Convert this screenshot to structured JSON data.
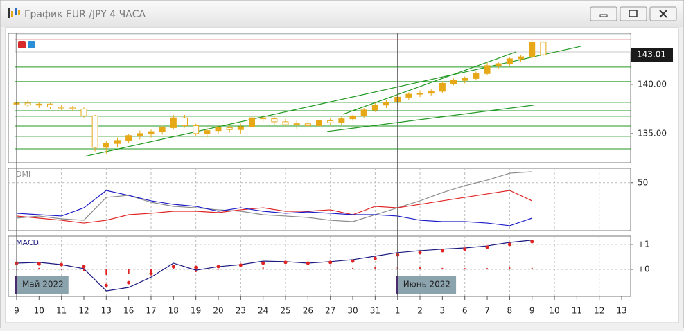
{
  "window": {
    "title": "График EUR /JPY  4 ЧАСА"
  },
  "chart_data": [
    {
      "type": "candlestick",
      "x": [
        0,
        0.5,
        1,
        1.5,
        2,
        2.5,
        3,
        3.5,
        4,
        4.5,
        5,
        5.5,
        6,
        6.5,
        7,
        7.5,
        8,
        8.5,
        9,
        9.5,
        10,
        10.5,
        11,
        11.5,
        12,
        12.5,
        13,
        13.5,
        14,
        14.5,
        15,
        15.5,
        16,
        16.5,
        17,
        17.5,
        18,
        18.5,
        19,
        19.5,
        20,
        20.5,
        21,
        21.5,
        22,
        22.5,
        23,
        23.5
      ],
      "open": [
        138.0,
        138.1,
        137.9,
        138.0,
        137.7,
        137.6,
        137.5,
        136.8,
        133.6,
        134.0,
        134.3,
        134.8,
        135.0,
        135.2,
        135.6,
        136.6,
        135.8,
        135.0,
        135.3,
        135.6,
        135.4,
        135.7,
        136.6,
        136.5,
        136.2,
        135.9,
        136.0,
        135.8,
        136.3,
        136.1,
        136.5,
        136.8,
        137.4,
        137.9,
        138.2,
        138.7,
        139.0,
        139.1,
        139.3,
        140.1,
        140.4,
        140.6,
        141.1,
        141.9,
        142.1,
        142.6,
        142.8,
        144.3
      ],
      "high": [
        138.3,
        138.4,
        138.2,
        138.1,
        137.9,
        137.8,
        137.7,
        136.9,
        134.3,
        134.6,
        135.0,
        135.3,
        135.4,
        135.8,
        136.9,
        136.9,
        136.0,
        135.6,
        135.9,
        135.9,
        136.0,
        136.8,
        136.9,
        136.8,
        136.5,
        136.3,
        136.4,
        136.6,
        136.6,
        136.7,
        136.9,
        137.6,
        138.1,
        138.4,
        138.9,
        139.2,
        139.4,
        139.5,
        140.3,
        140.6,
        140.8,
        141.3,
        142.2,
        142.3,
        142.8,
        143.0,
        144.6,
        144.4
      ],
      "low": [
        137.8,
        137.7,
        137.6,
        137.5,
        137.4,
        137.3,
        136.6,
        133.2,
        132.9,
        133.6,
        134.0,
        134.4,
        134.6,
        134.9,
        135.4,
        135.6,
        134.8,
        134.6,
        135.0,
        135.1,
        135.0,
        135.6,
        136.2,
        135.9,
        135.7,
        135.5,
        135.6,
        135.5,
        135.9,
        135.9,
        136.3,
        136.6,
        137.2,
        137.6,
        137.9,
        138.4,
        138.7,
        138.8,
        139.1,
        139.9,
        140.1,
        140.4,
        140.9,
        141.6,
        141.9,
        142.3,
        142.6,
        142.9
      ],
      "close": [
        138.1,
        137.9,
        138.0,
        137.7,
        137.6,
        137.5,
        136.8,
        133.6,
        134.0,
        134.3,
        134.8,
        135.0,
        135.2,
        135.6,
        136.6,
        135.8,
        135.0,
        135.3,
        135.6,
        135.4,
        135.7,
        136.6,
        136.5,
        136.2,
        135.9,
        136.0,
        135.8,
        136.3,
        136.1,
        136.5,
        136.8,
        137.4,
        137.9,
        138.2,
        138.7,
        139.0,
        139.1,
        139.3,
        140.1,
        140.4,
        140.6,
        141.1,
        141.9,
        142.1,
        142.6,
        142.8,
        144.3,
        143.0
      ],
      "color": "#e6a817",
      "xlim": [
        -0.37,
        27.4
      ],
      "ylim": [
        132.04,
        145.2
      ],
      "yticks": [
        {
          "value": 135,
          "label": "135.00"
        },
        {
          "value": 140,
          "label": "140.00"
        }
      ],
      "last_price": {
        "value": 143.01,
        "label": "143.01"
      },
      "levels": [
        {
          "value": 144.58,
          "color": "#d03030"
        },
        {
          "value": 141.76,
          "color": "#229922"
        },
        {
          "value": 140.28,
          "color": "#229922"
        },
        {
          "value": 138.17,
          "color": "#229922"
        },
        {
          "value": 137.32,
          "color": "#229922"
        },
        {
          "value": 136.76,
          "color": "#229922"
        },
        {
          "value": 135.77,
          "color": "#229922"
        },
        {
          "value": 134.72,
          "color": "#229922"
        },
        {
          "value": 133.45,
          "color": "#229922"
        }
      ],
      "trendlines": [
        {
          "x": [
            3.03,
            25.18
          ],
          "y": [
            132.68,
            143.87
          ],
          "color": "#229922"
        },
        {
          "x": [
            13.86,
            23.07
          ],
          "y": [
            135.21,
            137.89
          ],
          "color": "#229922"
        },
        {
          "x": [
            14.57,
            22.3
          ],
          "y": [
            136.97,
            143.31
          ],
          "color": "#229922"
        }
      ]
    },
    {
      "type": "line",
      "title": "DMI",
      "x": [
        0,
        1,
        2,
        3,
        4,
        5,
        6,
        7,
        8,
        9,
        10,
        11,
        12,
        13,
        14,
        15,
        16,
        17,
        18,
        19,
        20,
        21,
        22,
        23
      ],
      "series": [
        {
          "color": "#8a8a8a",
          "values": [
            13.0,
            15.2,
            12.3,
            10.8,
            34.7,
            36.8,
            29.6,
            25.3,
            23.8,
            21.7,
            20.2,
            16.6,
            15.2,
            13.7,
            10.8,
            9.4,
            16.6,
            23.8,
            31.1,
            39.7,
            46.9,
            52.7,
            59.9,
            61.4
          ]
        },
        {
          "color": "#e02424",
          "values": [
            15.2,
            13.0,
            10.8,
            7.9,
            10.8,
            16.6,
            18.1,
            20.2,
            20.2,
            18.8,
            21.7,
            23.8,
            20.2,
            20.2,
            21.7,
            16.6,
            25.3,
            23.8,
            27.4,
            31.1,
            34.7,
            38.3,
            41.9,
            31.1
          ]
        },
        {
          "color": "#1c1cc8",
          "values": [
            18.1,
            16.6,
            15.2,
            23.8,
            41.9,
            36.8,
            31.1,
            27.4,
            25.3,
            20.2,
            23.8,
            20.2,
            18.1,
            19.5,
            18.1,
            16.6,
            16.6,
            15.2,
            10.8,
            9.4,
            9.4,
            7.9,
            5.1,
            13.0
          ]
        }
      ],
      "xlim": [
        -0.37,
        27.4
      ],
      "ylim": [
        0,
        65
      ],
      "yticks": [
        50
      ]
    },
    {
      "type": "macd",
      "title": "MACD",
      "x": [
        0,
        1,
        2,
        3,
        4,
        5,
        6,
        7,
        8,
        9,
        10,
        11,
        12,
        13,
        14,
        15,
        16,
        17,
        18,
        19,
        20,
        21,
        22,
        23
      ],
      "series": [
        {
          "color": "#1a1a80",
          "style": "line",
          "values": [
            0.25,
            0.28,
            0.19,
            0.03,
            -0.86,
            -0.72,
            -0.31,
            0.25,
            -0.03,
            0.11,
            0.19,
            0.33,
            0.31,
            0.25,
            0.31,
            0.39,
            0.53,
            0.67,
            0.75,
            0.81,
            0.86,
            0.94,
            1.08,
            1.17
          ]
        },
        {
          "color": "#e02424",
          "style": "dots",
          "values": [
            0.25,
            0.22,
            0.19,
            0.11,
            -0.64,
            -0.53,
            -0.17,
            0.11,
            0.08,
            0.11,
            0.17,
            0.25,
            0.28,
            0.25,
            0.28,
            0.33,
            0.44,
            0.58,
            0.67,
            0.75,
            0.81,
            0.89,
            1.0,
            1.11
          ]
        }
      ],
      "histogram": {
        "color": "#e02424",
        "values": [
          0,
          0.06,
          0,
          -0.08,
          -0.22,
          -0.19,
          -0.14,
          0.14,
          -0.11,
          0,
          0.02,
          0.08,
          0.03,
          0,
          0.03,
          0.06,
          0.09,
          0.09,
          0.08,
          0.06,
          0.05,
          0.05,
          0.08,
          0.06
        ]
      },
      "xlim": [
        -0.37,
        27.4
      ],
      "ylim": [
        -1.08,
        1.33
      ],
      "yticks": [
        {
          "value": 1,
          "label": "+1"
        },
        {
          "value": 0,
          "label": "+0"
        }
      ],
      "xticks": [
        {
          "value": 0,
          "label": "9"
        },
        {
          "value": 1,
          "label": "10"
        },
        {
          "value": 2,
          "label": "11"
        },
        {
          "value": 3,
          "label": "12"
        },
        {
          "value": 4,
          "label": "13"
        },
        {
          "value": 5,
          "label": "16"
        },
        {
          "value": 6,
          "label": "17"
        },
        {
          "value": 7,
          "label": "18"
        },
        {
          "value": 8,
          "label": "19"
        },
        {
          "value": 9,
          "label": "20"
        },
        {
          "value": 10,
          "label": "23"
        },
        {
          "value": 11,
          "label": "24"
        },
        {
          "value": 12,
          "label": "25"
        },
        {
          "value": 13,
          "label": "26"
        },
        {
          "value": 14,
          "label": "27"
        },
        {
          "value": 15,
          "label": "30"
        },
        {
          "value": 16,
          "label": "31"
        },
        {
          "value": 17,
          "label": "1"
        },
        {
          "value": 18,
          "label": "2"
        },
        {
          "value": 19,
          "label": "3"
        },
        {
          "value": 20,
          "label": "6"
        },
        {
          "value": 21,
          "label": "7"
        },
        {
          "value": 22,
          "label": "8"
        },
        {
          "value": 23,
          "label": "9"
        },
        {
          "value": 24,
          "label": "10"
        },
        {
          "value": 25,
          "label": "11"
        },
        {
          "value": 26,
          "label": "12"
        },
        {
          "value": 27,
          "label": "13"
        }
      ],
      "annotations": [
        {
          "x": 0,
          "text": "Май 2022"
        },
        {
          "x": 17,
          "text": "Июнь 2022"
        }
      ]
    }
  ]
}
